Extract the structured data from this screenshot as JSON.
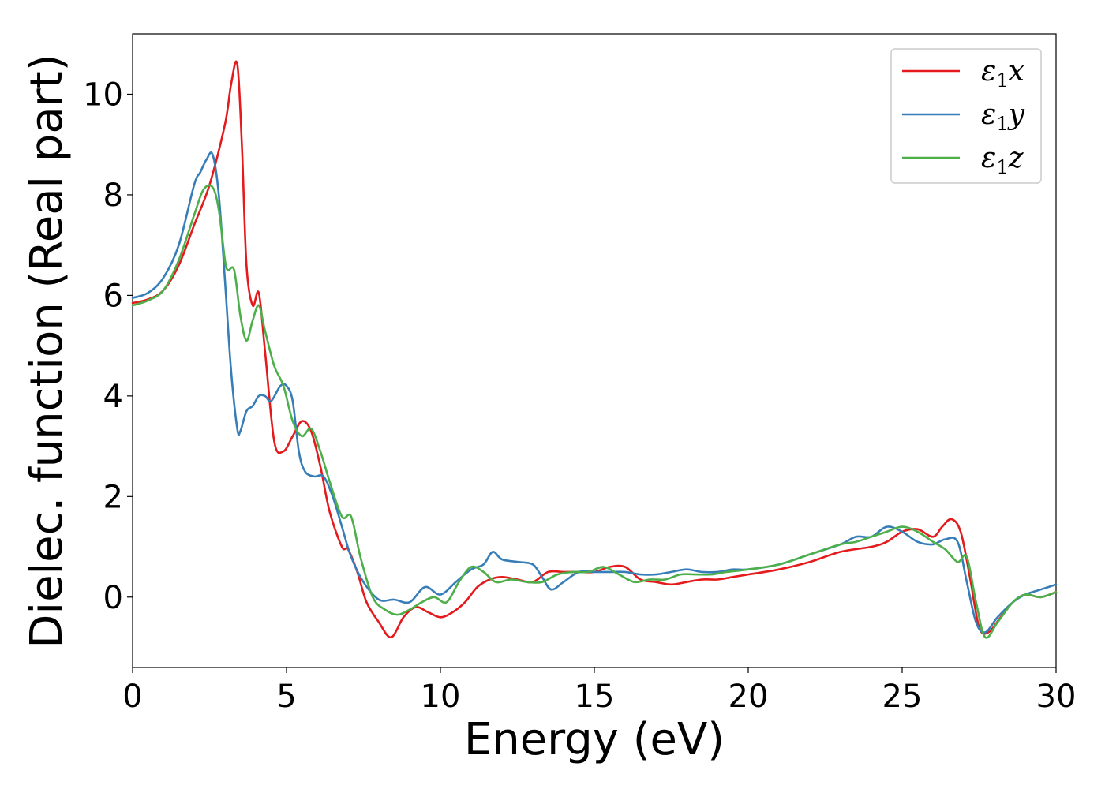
{
  "chart_data": {
    "type": "line",
    "xlabel": "Energy (eV)",
    "ylabel": "Dielec. function (Real part)",
    "xlim": [
      0,
      30
    ],
    "ylim": [
      -1.4,
      11.2
    ],
    "xticks": [
      0,
      5,
      10,
      15,
      20,
      25,
      30
    ],
    "yticks": [
      0,
      2,
      4,
      6,
      8,
      10
    ],
    "grid": false,
    "legend_position": "top-right",
    "series": [
      {
        "name": "ε1x",
        "symbol": "ε",
        "subscript": "1",
        "suffix": "x",
        "color": "#e41a1c",
        "x": [
          0,
          0.5,
          1.0,
          1.5,
          2.0,
          2.5,
          3.0,
          3.2,
          3.4,
          3.55,
          3.7,
          3.9,
          4.1,
          4.3,
          4.6,
          4.9,
          5.2,
          5.5,
          5.8,
          6.1,
          6.4,
          6.8,
          7.0,
          7.3,
          7.6,
          8.0,
          8.4,
          8.8,
          9.2,
          9.6,
          10.0,
          10.4,
          10.8,
          11.2,
          11.6,
          12.0,
          12.5,
          13.0,
          13.5,
          14.0,
          14.5,
          15.0,
          15.5,
          16.0,
          16.5,
          17.0,
          17.5,
          18.0,
          18.5,
          19.0,
          19.5,
          20.0,
          21.0,
          22.0,
          23.0,
          24.0,
          24.5,
          25.0,
          25.5,
          26.0,
          26.3,
          26.6,
          26.9,
          27.2,
          27.5,
          27.8,
          28.2,
          28.6,
          29.0,
          29.5,
          30.0
        ],
        "values": [
          5.85,
          5.92,
          6.1,
          6.6,
          7.4,
          8.2,
          9.4,
          10.2,
          10.6,
          9.0,
          6.6,
          5.8,
          6.05,
          4.9,
          3.1,
          2.9,
          3.2,
          3.5,
          3.3,
          2.6,
          1.7,
          1.0,
          0.95,
          0.5,
          -0.1,
          -0.5,
          -0.8,
          -0.4,
          -0.2,
          -0.3,
          -0.4,
          -0.3,
          -0.1,
          0.2,
          0.35,
          0.4,
          0.35,
          0.3,
          0.5,
          0.5,
          0.5,
          0.5,
          0.6,
          0.6,
          0.35,
          0.3,
          0.25,
          0.3,
          0.35,
          0.35,
          0.4,
          0.45,
          0.55,
          0.7,
          0.9,
          1.0,
          1.1,
          1.3,
          1.35,
          1.2,
          1.4,
          1.55,
          1.3,
          0.4,
          -0.6,
          -0.7,
          -0.4,
          -0.1,
          0.05,
          0.0,
          0.1
        ]
      },
      {
        "name": "ε1y",
        "symbol": "ε",
        "subscript": "1",
        "suffix": "y",
        "color": "#377eb8",
        "x": [
          0,
          0.5,
          1.0,
          1.5,
          2.0,
          2.2,
          2.4,
          2.6,
          2.8,
          3.0,
          3.2,
          3.4,
          3.5,
          3.7,
          3.9,
          4.1,
          4.3,
          4.5,
          4.8,
          5.0,
          5.2,
          5.4,
          5.6,
          5.9,
          6.2,
          6.5,
          6.8,
          7.1,
          7.5,
          8.0,
          8.5,
          9.0,
          9.5,
          10.0,
          10.5,
          11.0,
          11.4,
          11.7,
          12.0,
          12.5,
          13.0,
          13.3,
          13.6,
          14.0,
          14.5,
          15.0,
          15.5,
          16.0,
          16.5,
          17.0,
          17.5,
          18.0,
          18.5,
          19.0,
          19.5,
          20.0,
          21.0,
          22.0,
          23.0,
          23.5,
          24.0,
          24.5,
          25.0,
          25.5,
          26.0,
          26.4,
          26.8,
          27.1,
          27.4,
          27.7,
          28.1,
          28.6,
          29.0,
          29.5,
          30.0
        ],
        "values": [
          5.95,
          6.05,
          6.35,
          7.0,
          8.2,
          8.45,
          8.7,
          8.8,
          8.0,
          6.3,
          4.5,
          3.35,
          3.3,
          3.7,
          3.8,
          4.0,
          4.0,
          3.9,
          4.2,
          4.2,
          3.9,
          2.9,
          2.5,
          2.4,
          2.4,
          2.0,
          1.4,
          0.8,
          0.3,
          -0.05,
          -0.05,
          -0.1,
          0.2,
          0.05,
          0.3,
          0.55,
          0.65,
          0.9,
          0.75,
          0.7,
          0.65,
          0.4,
          0.15,
          0.3,
          0.5,
          0.5,
          0.5,
          0.5,
          0.45,
          0.45,
          0.5,
          0.55,
          0.5,
          0.5,
          0.55,
          0.55,
          0.65,
          0.85,
          1.05,
          1.2,
          1.2,
          1.4,
          1.3,
          1.1,
          1.05,
          1.15,
          1.1,
          0.3,
          -0.5,
          -0.7,
          -0.4,
          -0.1,
          0.05,
          0.15,
          0.25
        ]
      },
      {
        "name": "ε1z",
        "symbol": "ε",
        "subscript": "1",
        "suffix": "z",
        "color": "#4daf4a",
        "x": [
          0,
          0.5,
          1.0,
          1.5,
          2.0,
          2.3,
          2.6,
          2.8,
          3.0,
          3.1,
          3.3,
          3.5,
          3.7,
          3.9,
          4.1,
          4.3,
          4.6,
          4.9,
          5.2,
          5.5,
          5.8,
          6.1,
          6.4,
          6.8,
          7.1,
          7.4,
          7.8,
          8.2,
          8.6,
          9.0,
          9.4,
          9.8,
          10.2,
          10.6,
          11.0,
          11.4,
          11.8,
          12.3,
          12.8,
          13.3,
          13.8,
          14.3,
          14.8,
          15.3,
          15.8,
          16.3,
          16.8,
          17.3,
          17.8,
          18.3,
          18.8,
          19.3,
          20.0,
          21.0,
          22.0,
          23.0,
          23.5,
          24.0,
          24.5,
          25.0,
          25.5,
          26.0,
          26.4,
          26.8,
          27.1,
          27.4,
          27.7,
          28.1,
          28.6,
          29.0,
          29.5,
          30.0
        ],
        "values": [
          5.8,
          5.9,
          6.1,
          6.7,
          7.6,
          8.1,
          8.15,
          7.7,
          6.7,
          6.5,
          6.5,
          5.6,
          5.1,
          5.5,
          5.8,
          5.3,
          4.6,
          4.2,
          3.5,
          3.2,
          3.35,
          2.9,
          2.3,
          1.6,
          1.6,
          0.8,
          0.0,
          -0.25,
          -0.35,
          -0.25,
          -0.1,
          0.0,
          -0.1,
          0.3,
          0.6,
          0.5,
          0.3,
          0.35,
          0.3,
          0.3,
          0.45,
          0.5,
          0.5,
          0.6,
          0.45,
          0.3,
          0.35,
          0.35,
          0.45,
          0.45,
          0.45,
          0.5,
          0.55,
          0.65,
          0.85,
          1.05,
          1.1,
          1.2,
          1.3,
          1.4,
          1.3,
          1.1,
          0.95,
          0.7,
          0.8,
          -0.1,
          -0.8,
          -0.5,
          -0.1,
          0.05,
          0.0,
          0.1
        ]
      }
    ]
  }
}
